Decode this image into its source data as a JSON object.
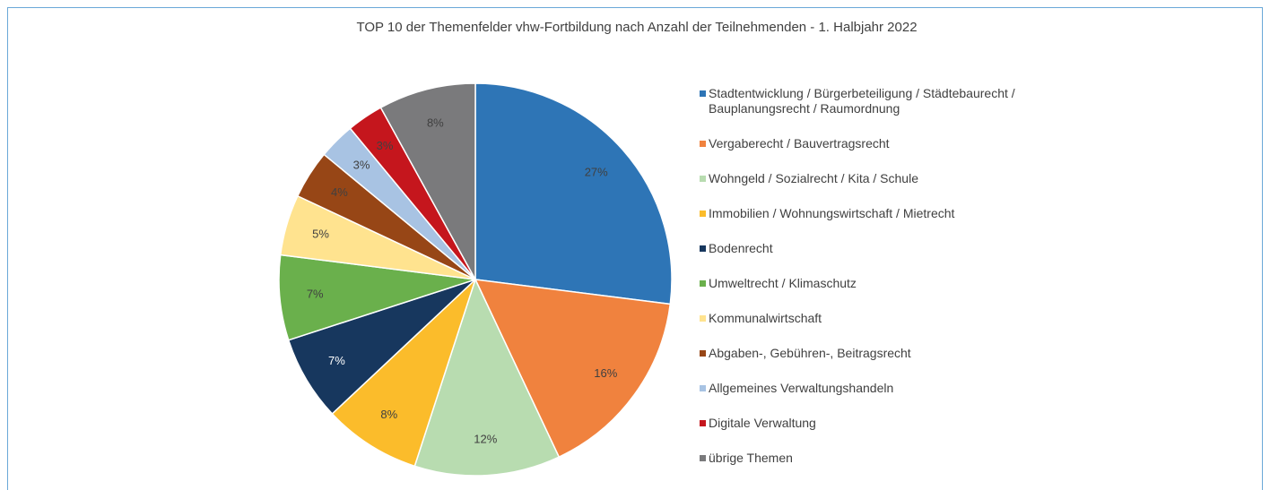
{
  "chart_data": {
    "type": "pie",
    "title": "TOP 10 der Themenfelder vhw-Fortbildung nach Anzahl der Teilnehmenden - 1. Halbjahr 2022",
    "categories": [
      "Stadtentwicklung / Bürgerbeteiligung / Städtebaurecht / Bauplanungsrecht / Raumordnung",
      "Vergaberecht / Bauvertragsrecht",
      "Wohngeld / Sozialrecht / Kita / Schule",
      "Immobilien / Wohnungswirtschaft / Mietrecht",
      "Bodenrecht",
      "Umweltrecht / Klimaschutz",
      "Kommunalwirtschaft",
      "Abgaben-, Gebühren-, Beitragsrecht",
      "Allgemeines Verwaltungshandeln",
      "Digitale Verwaltung",
      "übrige Themen"
    ],
    "values": [
      27,
      16,
      12,
      8,
      7,
      7,
      5,
      4,
      3,
      3,
      8
    ],
    "value_labels": [
      "27%",
      "16%",
      "12%",
      "8%",
      "7%",
      "7%",
      "5%",
      "4%",
      "3%",
      "3%",
      "8%"
    ],
    "colors": [
      "#2e75b6",
      "#f0823e",
      "#b8dcb0",
      "#fbbc2b",
      "#17375e",
      "#6ab04c",
      "#ffe38f",
      "#974616",
      "#a8c3e3",
      "#c5161d",
      "#7a7a7c"
    ],
    "legend": "right"
  }
}
